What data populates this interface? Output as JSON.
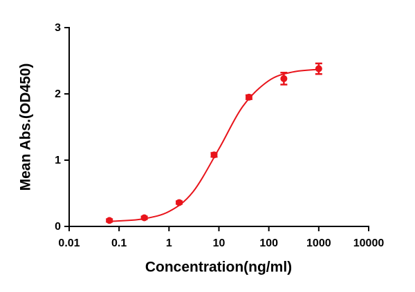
{
  "chart_data": {
    "type": "scatter",
    "x_label": "Concentration(ng/ml)",
    "y_label": "Mean Abs.(OD450)",
    "xscale": "log",
    "x": [
      0.064,
      0.32,
      1.6,
      8,
      40,
      200,
      1000
    ],
    "series": [
      {
        "color": "#e8141b",
        "values": [
          0.09,
          0.13,
          0.36,
          1.08,
          1.95,
          2.23,
          2.38
        ],
        "errors": [
          0.02,
          0.02,
          0.02,
          0.03,
          0.03,
          0.09,
          0.08
        ]
      }
    ],
    "fit": {
      "x": [
        0.064,
        0.1,
        0.3,
        1,
        3,
        10,
        30,
        100,
        300,
        1000
      ],
      "values": [
        0.078,
        0.083,
        0.113,
        0.225,
        0.518,
        1.17,
        1.81,
        2.2,
        2.33,
        2.37
      ]
    },
    "xlim": [
      0.01,
      10000
    ],
    "xticks": [
      0.01,
      0.1,
      1,
      10,
      100,
      1000,
      10000
    ],
    "ylim": [
      0,
      3
    ],
    "yticks": [
      0,
      1,
      2,
      3
    ]
  }
}
